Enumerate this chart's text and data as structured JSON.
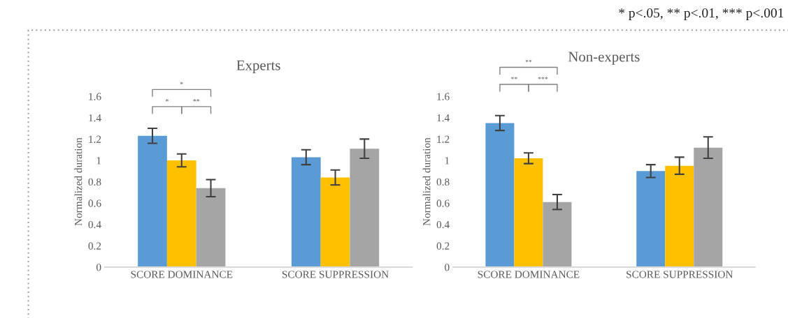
{
  "chart_data": [
    {
      "type": "bar",
      "title": "Experts",
      "ylabel": "Normalized duration",
      "categories": [
        "SCORE DOMINANCE",
        "SCORE SUPPRESSION"
      ],
      "series": [
        {
          "color": "#5b9bd5",
          "values": [
            1.23,
            1.03
          ],
          "errors": [
            0.07,
            0.07
          ]
        },
        {
          "color": "#ffc000",
          "values": [
            1.0,
            0.84
          ],
          "errors": [
            0.06,
            0.07
          ]
        },
        {
          "color": "#a5a5a5",
          "values": [
            0.74,
            1.11
          ],
          "errors": [
            0.08,
            0.09
          ]
        }
      ],
      "ylim": [
        0,
        1.6
      ],
      "yticks": [
        0,
        0.2,
        0.4,
        0.6,
        0.8,
        1,
        1.2,
        1.4,
        1.6
      ],
      "grid": false,
      "legend": false,
      "annotations": [
        "*",
        "**",
        "*"
      ]
    },
    {
      "type": "bar",
      "title": "Non-experts",
      "ylabel": "Normalized duration",
      "categories": [
        "SCORE DOMINANCE",
        "SCORE SUPPRESSION"
      ],
      "series": [
        {
          "color": "#5b9bd5",
          "values": [
            1.35,
            0.9
          ],
          "errors": [
            0.07,
            0.06
          ]
        },
        {
          "color": "#ffc000",
          "values": [
            1.02,
            0.95
          ],
          "errors": [
            0.05,
            0.08
          ]
        },
        {
          "color": "#a5a5a5",
          "values": [
            0.61,
            1.12
          ],
          "errors": [
            0.07,
            0.1
          ]
        }
      ],
      "ylim": [
        0,
        1.6
      ],
      "yticks": [
        0,
        0.2,
        0.4,
        0.6,
        0.8,
        1,
        1.2,
        1.4,
        1.6
      ],
      "grid": false,
      "legend": false,
      "annotations": [
        "**",
        "***",
        "**",
        "* p<.05, ** p<.01, *** p<.001"
      ]
    }
  ]
}
